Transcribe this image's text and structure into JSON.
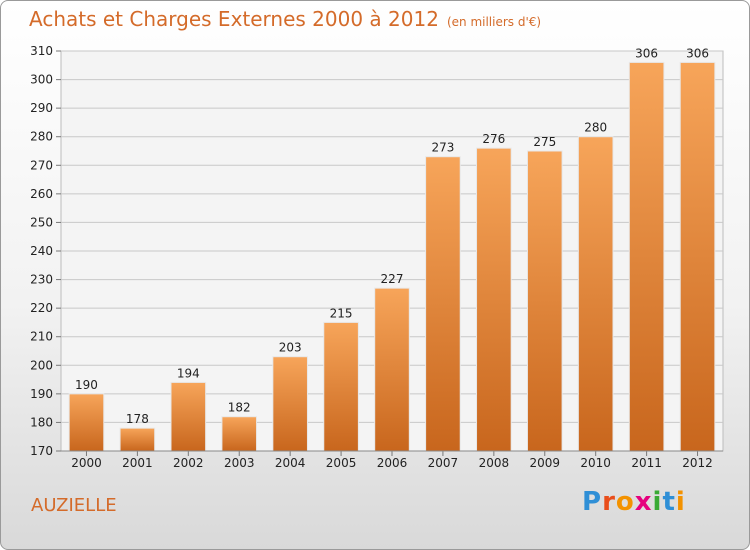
{
  "header": {
    "title": "Achats et Charges Externes 2000 à 2012",
    "unit": "(en milliers d'€)"
  },
  "place": "AUZIELLE",
  "logo": {
    "letters": [
      "P",
      "r",
      "o",
      "x",
      "i",
      "t",
      "i"
    ],
    "colors": [
      "#2f8fd6",
      "#e94e1b",
      "#f39200",
      "#e6007e",
      "#3aaa35",
      "#2f8fd6",
      "#f39200"
    ]
  },
  "colors": {
    "accent": "#d46b2a",
    "bar_light": "#f7a55a",
    "bar_dark": "#c8661d"
  },
  "chart_data": {
    "type": "bar",
    "title": "Achats et Charges Externes 2000 à 2012",
    "subtitle": "(en milliers d'€)",
    "categories": [
      "2000",
      "2001",
      "2002",
      "2003",
      "2004",
      "2005",
      "2006",
      "2007",
      "2008",
      "2009",
      "2010",
      "2011",
      "2012"
    ],
    "values": [
      190,
      178,
      194,
      182,
      203,
      215,
      227,
      273,
      276,
      275,
      280,
      306,
      306
    ],
    "ylim": [
      170,
      310
    ],
    "yticks": [
      170,
      180,
      190,
      200,
      210,
      220,
      230,
      240,
      250,
      260,
      270,
      280,
      290,
      300,
      310
    ],
    "grid": true
  }
}
